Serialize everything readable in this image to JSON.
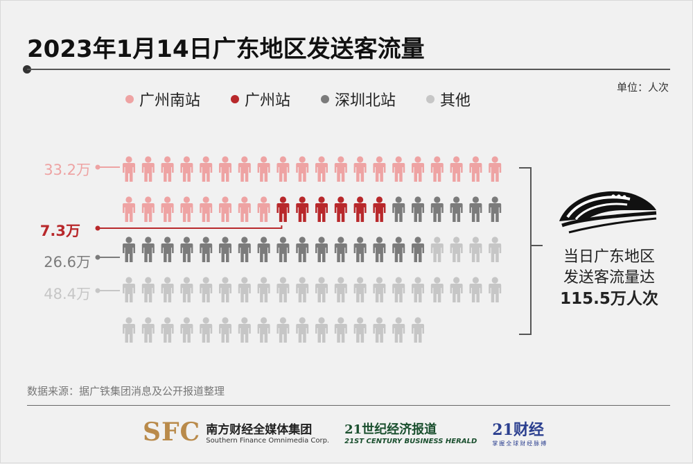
{
  "title": "2023年1月14日广东地区发送客流量",
  "unit": "单位：人次",
  "chart_data": {
    "type": "pictogram",
    "title": "2023年1月14日广东地区发送客流量",
    "unit": "单位：人次",
    "icon": "person-icon",
    "icons_total": 96,
    "series": [
      {
        "name": "广州南站",
        "value": 33.2,
        "label": "33.2万",
        "icons": 28,
        "color": "#eea3a3"
      },
      {
        "name": "广州站",
        "value": 7.3,
        "label": "7.3万",
        "icons": 6,
        "color": "#b8282b"
      },
      {
        "name": "深圳北站",
        "value": 26.6,
        "label": "26.6万",
        "icons": 22,
        "color": "#7b7b7b"
      },
      {
        "name": "其他",
        "value": 48.4,
        "label": "48.4万",
        "icons": 40,
        "color": "#c6c6c6"
      }
    ],
    "total": {
      "value": 115.5,
      "label": "115.5万人次"
    },
    "legend_position": "top"
  },
  "summary": {
    "line1": "当日广东地区",
    "line2": "发送客流量达",
    "total": "115.5万人次"
  },
  "source": "数据来源：据广铁集团消息及公开报道整理",
  "footer": {
    "sfc_mark": "SFC",
    "sfc_name": "南方财经全媒体集团",
    "sfc_en": "Southern Finance Omnimedia Corp.",
    "herald_name": "21世纪经济报道",
    "herald_en": "21ST CENTURY BUSINESS HERALD",
    "caijing_name": "21财经",
    "caijing_sub": "掌握全球财经脉搏"
  }
}
